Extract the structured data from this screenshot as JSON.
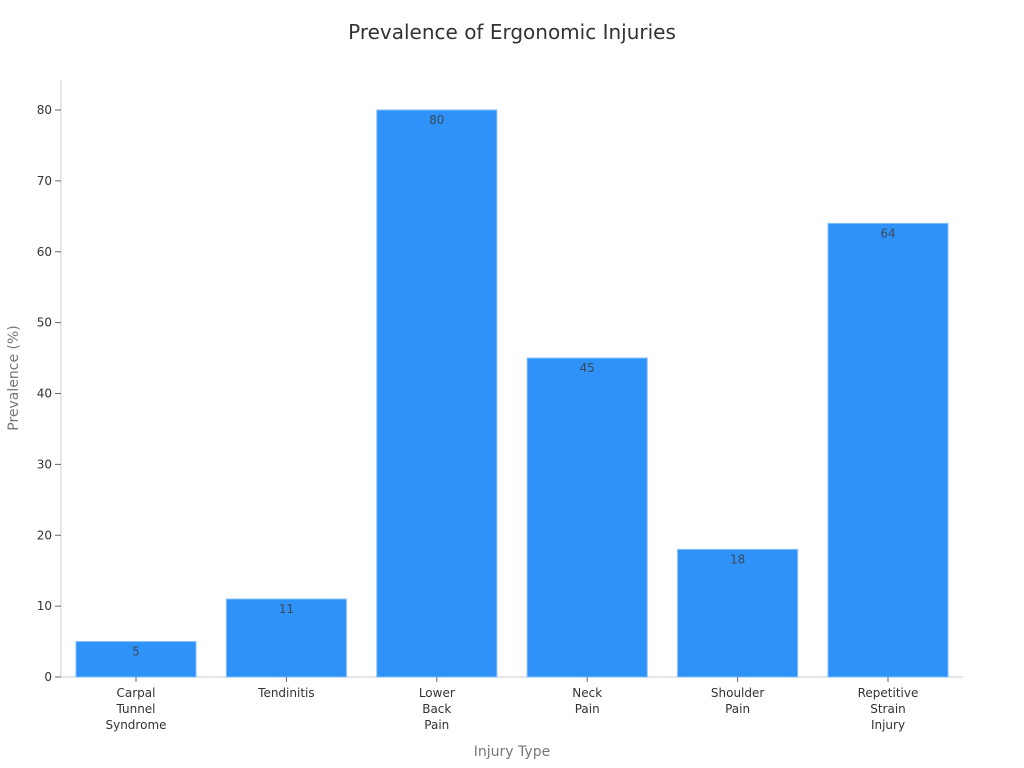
{
  "chart_data": {
    "type": "bar",
    "title": "Prevalence of Ergonomic Injuries",
    "xlabel": "Injury Type",
    "ylabel": "Prevalence (%)",
    "categories": [
      "Carpal Tunnel Syndrome",
      "Tendinitis",
      "Lower Back Pain",
      "Neck Pain",
      "Shoulder Pain",
      "Repetitive Strain Injury"
    ],
    "category_lines": [
      [
        "Carpal",
        "Tunnel",
        "Syndrome"
      ],
      [
        "Tendinitis"
      ],
      [
        "Lower",
        "Back",
        "Pain"
      ],
      [
        "Neck",
        "Pain"
      ],
      [
        "Shoulder",
        "Pain"
      ],
      [
        "Repetitive",
        "Strain",
        "Injury"
      ]
    ],
    "values": [
      5,
      11,
      80,
      45,
      18,
      64
    ],
    "data_labels": [
      "5",
      "11",
      "80",
      "45",
      "18",
      "64"
    ],
    "ylim": [
      0,
      84
    ],
    "yticks": [
      0,
      10,
      20,
      30,
      40,
      50,
      60,
      70,
      80
    ],
    "grid": false,
    "legend": null,
    "bar_color": "#2e92f8"
  }
}
